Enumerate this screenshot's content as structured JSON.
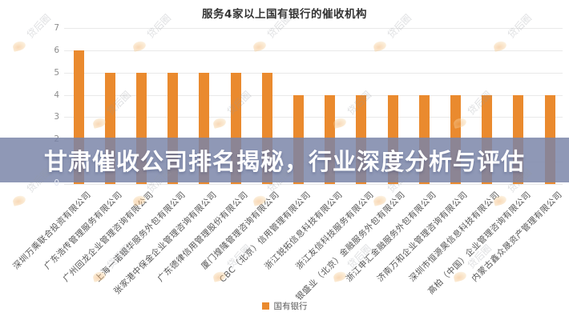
{
  "title": "服务4家以上国有银行的催收机构",
  "overlay": {
    "text": "甘肃催收公司排名揭秘，行业深度分析与评估"
  },
  "watermark": {
    "text": "贷后圈"
  },
  "legend": {
    "label": "国有银行"
  },
  "colors": {
    "bar": "#ea8a2e",
    "banner_bg": "rgba(122,132,168,0.84)",
    "banner_text": "#ffffff",
    "grid": "#e9e9e9"
  },
  "chart_data": {
    "type": "bar",
    "title": "服务4家以上国有银行的催收机构",
    "series_name": "国有银行",
    "categories": [
      "深圳万乘联合投资有限公司",
      "广东浩传管理服务有限公司",
      "广州回龙企业管理咨询有限公司",
      "上海一诺银华服务外包有限公司",
      "张家港中保金企业管理咨询有限公司",
      "广东德律信用管理股份有限公司",
      "厦门煌隆管理咨询有限公司",
      "CBC（北京）信用管理有限公司",
      "浙江锐拓信息科技有限公司",
      "浙江友信科技服务有限公司",
      "银盛业（北京）金融服务外包有限公司",
      "浙江申汇金融服务外包有限公司",
      "济南万和企业管理咨询有限公司",
      "深圳市恒源昊信息科技有限公司",
      "高柏（中国）企业管理咨询有限公司",
      "内蒙古鑫众晟资产管理有限公司"
    ],
    "values": [
      6,
      5,
      5,
      5,
      5,
      5,
      5,
      4,
      4,
      4,
      4,
      4,
      4,
      4,
      4,
      4
    ],
    "xlabel": "",
    "ylabel": "",
    "ylim": [
      0,
      7
    ],
    "yticks": [
      0,
      1,
      2,
      3,
      4,
      5,
      6,
      7
    ],
    "grid": true,
    "legend_position": "bottom"
  }
}
